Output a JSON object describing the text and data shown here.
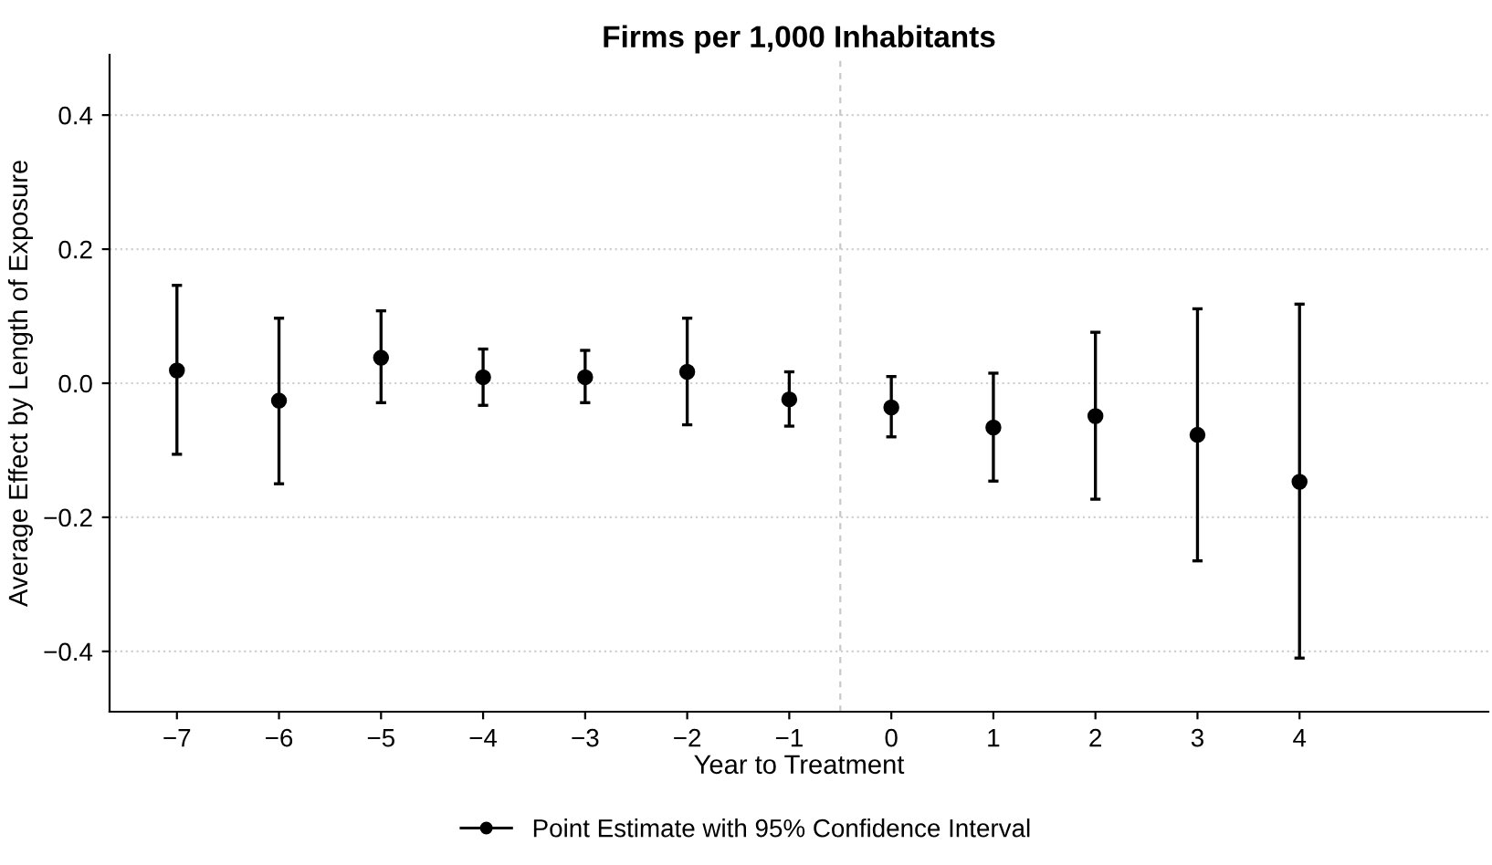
{
  "chart_data": {
    "type": "scatter",
    "title": "Firms per 1,000 Inhabitants",
    "xlabel": "Year to Treatment",
    "ylabel": "Average Effect by Length of Exposure",
    "x": [
      -7,
      -6,
      -5,
      -4,
      -3,
      -2,
      -1,
      0,
      1,
      2,
      3,
      4
    ],
    "series": [
      {
        "name": "Point Estimate with 95% Confidence Interval",
        "color": "#000000",
        "values": [
          0.019,
          -0.026,
          0.038,
          0.009,
          0.009,
          0.017,
          -0.024,
          -0.036,
          -0.066,
          -0.049,
          -0.077,
          -0.147
        ],
        "errors": [
          [
            -0.106,
            0.146
          ],
          [
            -0.15,
            0.097
          ],
          [
            -0.029,
            0.108
          ],
          [
            -0.033,
            0.051
          ],
          [
            -0.029,
            0.049
          ],
          [
            -0.062,
            0.097
          ],
          [
            -0.064,
            0.017
          ],
          [
            -0.08,
            0.01
          ],
          [
            -0.146,
            0.015
          ],
          [
            -0.173,
            0.076
          ],
          [
            -0.265,
            0.111
          ],
          [
            -0.41,
            0.118
          ]
        ]
      }
    ],
    "xlim": [
      -7.66,
      5.85
    ],
    "ylim": [
      -0.49,
      0.49
    ],
    "xticks": [
      {
        "value": -7,
        "label": "−7"
      },
      {
        "value": -6,
        "label": "−6"
      },
      {
        "value": -5,
        "label": "−5"
      },
      {
        "value": -4,
        "label": "−4"
      },
      {
        "value": -3,
        "label": "−3"
      },
      {
        "value": -2,
        "label": "−2"
      },
      {
        "value": -1,
        "label": "−1"
      },
      0,
      1,
      2,
      3,
      4
    ],
    "yticks": [
      {
        "value": -0.4,
        "label": "−0.4"
      },
      {
        "value": -0.2,
        "label": "−0.2"
      },
      {
        "value": 0,
        "label": "0.0"
      },
      0.2,
      0.4
    ],
    "ref_lines": [
      {
        "axis": "x",
        "value": -0.5,
        "color": "#c8c8c8",
        "line_style": "dashed"
      }
    ],
    "grid": "y",
    "legend": "bottom",
    "marker": "circle"
  }
}
